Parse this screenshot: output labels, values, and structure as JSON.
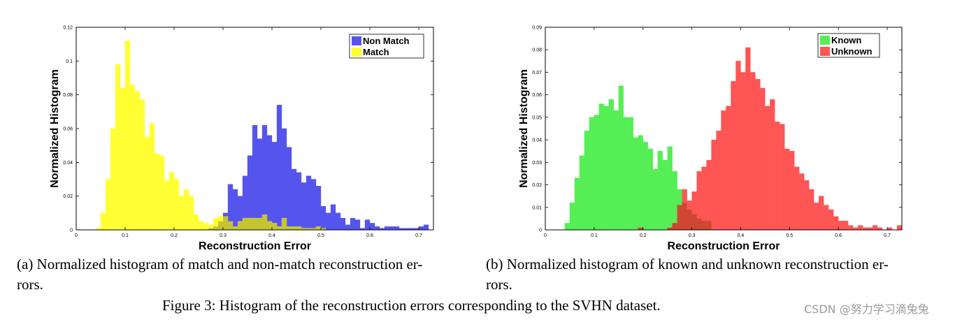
{
  "figure": {
    "caption": "Figure 3: Histogram of the reconstruction errors corresponding to the SVHN dataset.",
    "watermark": "CSDN @努力学习滴兔兔"
  },
  "subfigures": [
    {
      "caption_line1": "(a) Normalized histogram of match and non-match reconstruction er-",
      "caption_line2": "rors."
    },
    {
      "caption_line1": "(b) Normalized histogram of known and unknown reconstruction er-",
      "caption_line2": "rors."
    }
  ],
  "chart_data": [
    {
      "type": "bar",
      "xlabel": "Reconstruction Error",
      "ylabel": "Normalized Histogram",
      "xlim": [
        0,
        0.73
      ],
      "ylim": [
        0,
        0.12
      ],
      "xticks": [
        0,
        0.1,
        0.2,
        0.3,
        0.4,
        0.5,
        0.6,
        0.7
      ],
      "xtick_labels": [
        "0",
        "0.1",
        "0.2",
        "0.3",
        "0.4",
        "0.5",
        "0.6",
        "0.7"
      ],
      "yticks": [
        0,
        0.02,
        0.04,
        0.06,
        0.08,
        0.1,
        0.12
      ],
      "ytick_labels": [
        "0",
        "0.02",
        "0.04",
        "0.06",
        "0.08",
        "0.1",
        "0.12"
      ],
      "legend_position": "top-right",
      "bin_width": 0.01,
      "series": [
        {
          "name": "Non Match",
          "color": "#5555ee",
          "bins": [
            [
              0.27,
              0.001
            ],
            [
              0.28,
              0.002
            ],
            [
              0.29,
              0.005
            ],
            [
              0.3,
              0.01
            ],
            [
              0.31,
              0.027
            ],
            [
              0.32,
              0.024
            ],
            [
              0.33,
              0.02
            ],
            [
              0.34,
              0.032
            ],
            [
              0.35,
              0.044
            ],
            [
              0.36,
              0.062
            ],
            [
              0.37,
              0.054
            ],
            [
              0.38,
              0.062
            ],
            [
              0.39,
              0.056
            ],
            [
              0.4,
              0.052
            ],
            [
              0.41,
              0.074
            ],
            [
              0.42,
              0.06
            ],
            [
              0.43,
              0.049
            ],
            [
              0.44,
              0.036
            ],
            [
              0.45,
              0.034
            ],
            [
              0.46,
              0.028
            ],
            [
              0.47,
              0.032
            ],
            [
              0.48,
              0.03
            ],
            [
              0.49,
              0.026
            ],
            [
              0.5,
              0.014
            ],
            [
              0.51,
              0.01
            ],
            [
              0.52,
              0.015
            ],
            [
              0.53,
              0.01
            ],
            [
              0.54,
              0.007
            ],
            [
              0.55,
              0.003
            ],
            [
              0.56,
              0.007
            ],
            [
              0.57,
              0.006
            ],
            [
              0.58,
              0.001
            ],
            [
              0.59,
              0.006
            ],
            [
              0.6,
              0.004
            ],
            [
              0.61,
              0.002
            ],
            [
              0.62,
              0.001
            ],
            [
              0.63,
              0.002
            ],
            [
              0.64,
              0.002
            ],
            [
              0.65,
              0.002
            ],
            [
              0.66,
              0.001
            ],
            [
              0.67,
              0.001
            ],
            [
              0.68,
              0.001
            ],
            [
              0.69,
              0.001
            ],
            [
              0.7,
              0.002
            ],
            [
              0.71,
              0.003
            ]
          ]
        },
        {
          "name": "Match",
          "color": "#ffff33",
          "bins": [
            [
              0.04,
              0.001
            ],
            [
              0.05,
              0.01
            ],
            [
              0.06,
              0.03
            ],
            [
              0.07,
              0.06
            ],
            [
              0.08,
              0.098
            ],
            [
              0.09,
              0.084
            ],
            [
              0.1,
              0.112
            ],
            [
              0.11,
              0.086
            ],
            [
              0.12,
              0.082
            ],
            [
              0.13,
              0.077
            ],
            [
              0.14,
              0.055
            ],
            [
              0.15,
              0.063
            ],
            [
              0.16,
              0.045
            ],
            [
              0.17,
              0.044
            ],
            [
              0.18,
              0.029
            ],
            [
              0.19,
              0.034
            ],
            [
              0.2,
              0.03
            ],
            [
              0.21,
              0.02
            ],
            [
              0.22,
              0.024
            ],
            [
              0.23,
              0.02
            ],
            [
              0.24,
              0.009
            ],
            [
              0.25,
              0.005
            ],
            [
              0.26,
              0.004
            ],
            [
              0.27,
              0.003
            ],
            [
              0.28,
              0.007
            ],
            [
              0.29,
              0.008
            ],
            [
              0.3,
              0.008
            ],
            [
              0.31,
              0.005
            ],
            [
              0.32,
              0.002
            ],
            [
              0.33,
              0.005
            ],
            [
              0.34,
              0.007
            ],
            [
              0.35,
              0.007
            ],
            [
              0.36,
              0.007
            ],
            [
              0.37,
              0.007
            ],
            [
              0.38,
              0.009
            ],
            [
              0.39,
              0.005
            ],
            [
              0.4,
              0.004
            ],
            [
              0.41,
              0.002
            ],
            [
              0.42,
              0.007
            ],
            [
              0.43,
              0.002
            ],
            [
              0.44,
              0.002
            ],
            [
              0.45,
              0.002
            ],
            [
              0.46,
              0.001
            ],
            [
              0.47,
              0.001
            ],
            [
              0.48,
              0.001
            ],
            [
              0.49,
              0.002
            ],
            [
              0.5,
              0.001
            ]
          ]
        }
      ]
    },
    {
      "type": "bar",
      "xlabel": "Reconstruction Error",
      "ylabel": "Normalized Histogram",
      "xlim": [
        0,
        0.73
      ],
      "ylim": [
        0,
        0.09
      ],
      "xticks": [
        0,
        0.1,
        0.2,
        0.3,
        0.4,
        0.5,
        0.6,
        0.7
      ],
      "xtick_labels": [
        "0",
        "0.1",
        "0.2",
        "0.3",
        "0.4",
        "0.5",
        "0.6",
        "0.7"
      ],
      "yticks": [
        0,
        0.01,
        0.02,
        0.03,
        0.04,
        0.05,
        0.06,
        0.07,
        0.08,
        0.09
      ],
      "ytick_labels": [
        "0",
        "0.01",
        "0.02",
        "0.03",
        "0.04",
        "0.05",
        "0.06",
        "0.07",
        "0.08",
        "0.09"
      ],
      "legend_position": "top-right",
      "bin_width": 0.01,
      "series": [
        {
          "name": "Known",
          "color": "#55ee55",
          "bins": [
            [
              0.04,
              0.003
            ],
            [
              0.05,
              0.012
            ],
            [
              0.06,
              0.023
            ],
            [
              0.07,
              0.033
            ],
            [
              0.08,
              0.044
            ],
            [
              0.09,
              0.05
            ],
            [
              0.1,
              0.051
            ],
            [
              0.11,
              0.056
            ],
            [
              0.12,
              0.055
            ],
            [
              0.13,
              0.058
            ],
            [
              0.14,
              0.053
            ],
            [
              0.15,
              0.064
            ],
            [
              0.16,
              0.05
            ],
            [
              0.17,
              0.05
            ],
            [
              0.18,
              0.041
            ],
            [
              0.19,
              0.042
            ],
            [
              0.2,
              0.039
            ],
            [
              0.21,
              0.036
            ],
            [
              0.22,
              0.027
            ],
            [
              0.23,
              0.035
            ],
            [
              0.24,
              0.031
            ],
            [
              0.25,
              0.037
            ],
            [
              0.26,
              0.026
            ],
            [
              0.27,
              0.018
            ],
            [
              0.28,
              0.012
            ],
            [
              0.29,
              0.009
            ],
            [
              0.3,
              0.007
            ],
            [
              0.31,
              0.005
            ],
            [
              0.32,
              0.004
            ],
            [
              0.33,
              0.004
            ]
          ]
        },
        {
          "name": "Unknown",
          "color": "#ff5555",
          "bins": [
            [
              0.19,
              0.001
            ],
            [
              0.25,
              0.001
            ],
            [
              0.26,
              0.003
            ],
            [
              0.27,
              0.011
            ],
            [
              0.28,
              0.018
            ],
            [
              0.29,
              0.013
            ],
            [
              0.3,
              0.017
            ],
            [
              0.31,
              0.026
            ],
            [
              0.32,
              0.028
            ],
            [
              0.33,
              0.031
            ],
            [
              0.34,
              0.04
            ],
            [
              0.35,
              0.044
            ],
            [
              0.36,
              0.053
            ],
            [
              0.37,
              0.055
            ],
            [
              0.38,
              0.066
            ],
            [
              0.39,
              0.075
            ],
            [
              0.4,
              0.07
            ],
            [
              0.41,
              0.081
            ],
            [
              0.42,
              0.07
            ],
            [
              0.43,
              0.067
            ],
            [
              0.44,
              0.063
            ],
            [
              0.45,
              0.055
            ],
            [
              0.46,
              0.058
            ],
            [
              0.47,
              0.048
            ],
            [
              0.48,
              0.047
            ],
            [
              0.49,
              0.036
            ],
            [
              0.5,
              0.035
            ],
            [
              0.51,
              0.028
            ],
            [
              0.52,
              0.025
            ],
            [
              0.53,
              0.022
            ],
            [
              0.54,
              0.018
            ],
            [
              0.55,
              0.012
            ],
            [
              0.56,
              0.015
            ],
            [
              0.57,
              0.011
            ],
            [
              0.58,
              0.009
            ],
            [
              0.59,
              0.006
            ],
            [
              0.6,
              0.004
            ],
            [
              0.61,
              0.004
            ],
            [
              0.62,
              0.002
            ],
            [
              0.63,
              0.001
            ],
            [
              0.64,
              0.002
            ],
            [
              0.65,
              0.001
            ],
            [
              0.66,
              0.001
            ],
            [
              0.67,
              0.002
            ],
            [
              0.68,
              0.001
            ],
            [
              0.7,
              0.001
            ],
            [
              0.72,
              0.002
            ]
          ]
        }
      ]
    }
  ]
}
